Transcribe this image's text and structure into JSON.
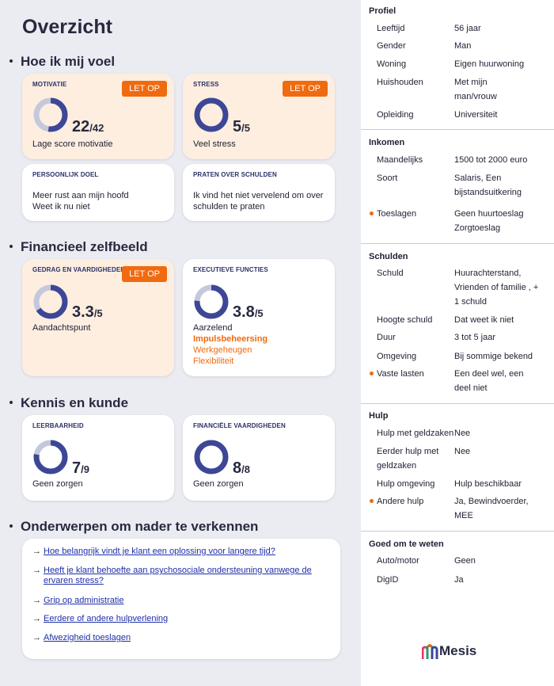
{
  "title": "Overzicht",
  "sections": {
    "feel": "Hoe ik mij voel",
    "finance": "Financieel zelfbeeld",
    "knowledge": "Kennis en kunde",
    "topics": "Onderwerpen om nader te verkennen"
  },
  "badge": "LET OP",
  "cards": {
    "motivatie": {
      "label": "MOTIVATIE",
      "score": "22",
      "max": "/42",
      "value": 22,
      "total": 42,
      "desc": "Lage score motivatie"
    },
    "stress": {
      "label": "STRESS",
      "score": "5",
      "max": "/5",
      "value": 5,
      "total": 5,
      "desc": "Veel stress"
    },
    "doel": {
      "label": "PERSOONLIJK DOEL",
      "line1": "Meer rust aan mijn hoofd",
      "line2": "Weet ik nu niet"
    },
    "praten": {
      "label": "PRATEN OVER SCHULDEN",
      "text": "Ik vind het niet vervelend om over schulden te praten"
    },
    "gedrag": {
      "label": "GEDRAG EN VAARDIGHEDEN",
      "score": "3.3",
      "max": "/5",
      "value": 3.3,
      "total": 5,
      "desc": "Aandachtspunt"
    },
    "executief": {
      "label": "EXECUTIEVE FUNCTIES",
      "score": "3.8",
      "max": "/5",
      "value": 3.8,
      "total": 5,
      "desc": "Aarzelend",
      "items": [
        "Impulsbeheersing",
        "Werkgeheugen",
        "Flexibiliteit"
      ]
    },
    "leerbaarheid": {
      "label": "LEERBAARHEID",
      "score": "7",
      "max": "/9",
      "value": 7,
      "total": 9,
      "desc": "Geen zorgen"
    },
    "vaardigheden": {
      "label": "FINANCIËLE VAARDIGHEDEN",
      "score": "8",
      "max": "/8",
      "value": 8,
      "total": 8,
      "desc": "Geen zorgen"
    }
  },
  "topics": [
    "Hoe belangrijk vindt je klant een oplossing voor langere tijd?",
    "Heeft je klant behoefte aan psychosociale ondersteuning vanwege de ervaren stress?",
    "Grip op administratie",
    "Eerdere of andere hulpverlening",
    "Afwezigheid toeslagen"
  ],
  "topic_arrow": "→",
  "sidebar": {
    "profiel": {
      "title": "Profiel",
      "rows": [
        {
          "k": "Leeftijd",
          "v": "56 jaar"
        },
        {
          "k": "Gender",
          "v": "Man"
        },
        {
          "k": "Woning",
          "v": "Eigen huurwoning"
        },
        {
          "k": "Huishouden",
          "v": "Met mijn man/vrouw"
        },
        {
          "k": "Opleiding",
          "v": "Universiteit"
        }
      ]
    },
    "inkomen": {
      "title": "Inkomen",
      "rows": [
        {
          "k": "Maandelijks",
          "v": "1500 tot 2000 euro"
        },
        {
          "k": "Soort",
          "v": "Salaris, Een bijstandsuitkering"
        },
        {
          "k": "Toeslagen",
          "v": "Geen huurtoeslag Zorgtoeslag",
          "flag": true
        }
      ]
    },
    "schulden": {
      "title": "Schulden",
      "rows": [
        {
          "k": "Schuld",
          "v": "Huurachterstand, Vrienden of familie , + 1 schuld"
        },
        {
          "k": "Hoogte schuld",
          "v": "Dat weet ik niet"
        },
        {
          "k": "Duur",
          "v": "3 tot 5 jaar"
        },
        {
          "k": "Omgeving",
          "v": "Bij sommige bekend"
        },
        {
          "k": "Vaste lasten",
          "v": "Een deel wel, een deel niet",
          "flag": true
        }
      ]
    },
    "hulp": {
      "title": "Hulp",
      "rows": [
        {
          "k": "Hulp met geldzaken",
          "v": "Nee"
        },
        {
          "k": "Eerder hulp met geldzaken",
          "v": "Nee"
        },
        {
          "k": "Hulp omgeving",
          "v": "Hulp beschikbaar"
        },
        {
          "k": "Andere hulp",
          "v": "Ja, Bewindvoerder, MEE",
          "flag": true
        }
      ]
    },
    "goed": {
      "title": "Goed om te weten",
      "rows": [
        {
          "k": "Auto/motor",
          "v": "Geen"
        },
        {
          "k": "DigID",
          "v": "Ja"
        }
      ]
    }
  },
  "logo": "Mesis",
  "colors": {
    "accent": "#f06a0f",
    "donut": "#3d4796",
    "donut_track": "#c5c8dc",
    "warn_bg": "#fdeee0"
  }
}
